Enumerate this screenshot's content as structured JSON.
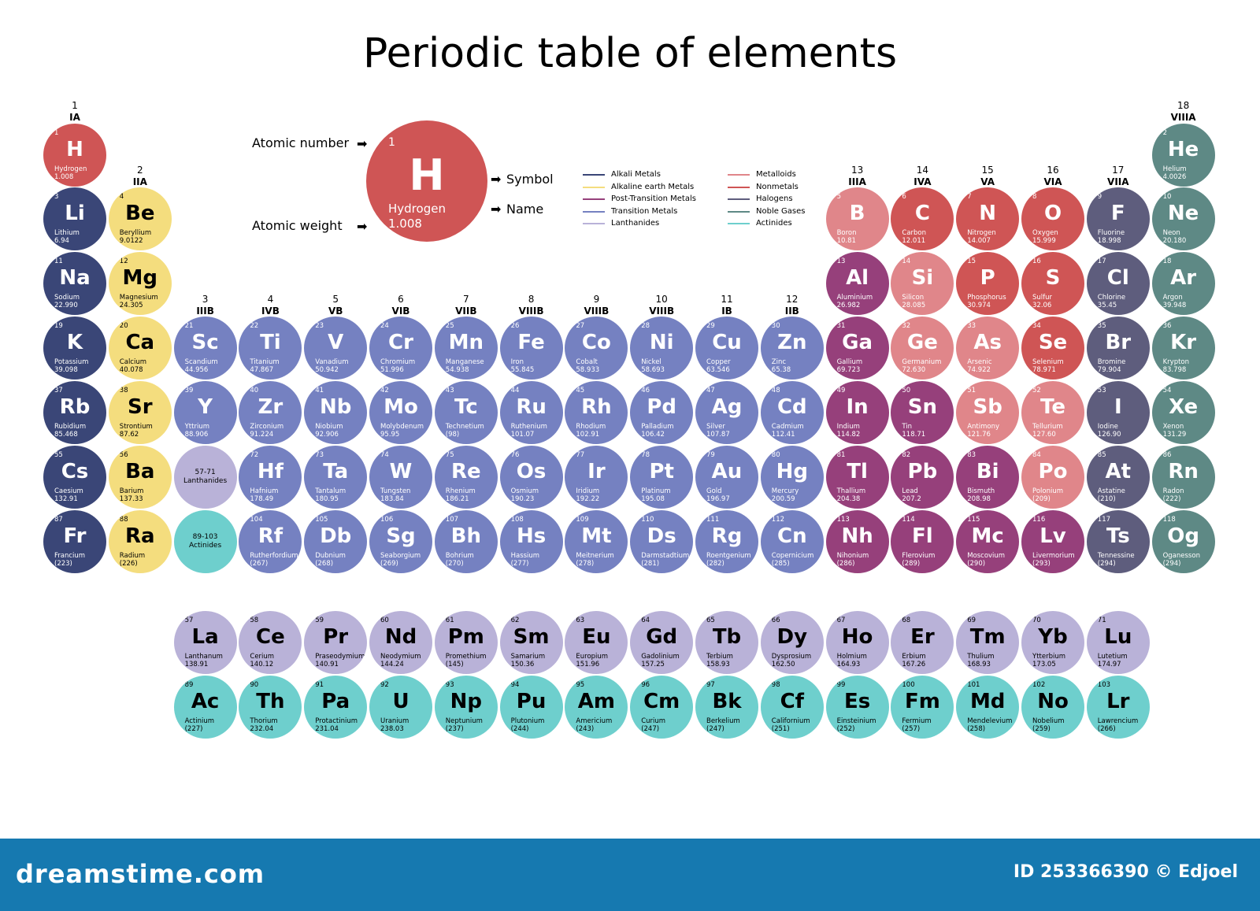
{
  "title": "Periodic table of elements",
  "colors": {
    "alkali": "#3a4677",
    "alkaline": "#f4dd7e",
    "post": "#96407b",
    "transition": "#7581c1",
    "lanthanide": "#b9b2d8",
    "metalloid": "#e0868a",
    "nonmetal": "#cf5555",
    "halogen": "#5e5d7d",
    "noble": "#5e8985",
    "actinide": "#6ecfcd"
  },
  "groups": [
    {
      "n": "1",
      "r": "IA"
    },
    {
      "n": "2",
      "r": "IIA"
    },
    {
      "n": "3",
      "r": "IIIB"
    },
    {
      "n": "4",
      "r": "IVB"
    },
    {
      "n": "5",
      "r": "VB"
    },
    {
      "n": "6",
      "r": "VIB"
    },
    {
      "n": "7",
      "r": "VIIB"
    },
    {
      "n": "8",
      "r": "VIIIB"
    },
    {
      "n": "9",
      "r": "VIIIB"
    },
    {
      "n": "10",
      "r": "VIIIB"
    },
    {
      "n": "11",
      "r": "IB"
    },
    {
      "n": "12",
      "r": "IIB"
    },
    {
      "n": "13",
      "r": "IIIA"
    },
    {
      "n": "14",
      "r": "IVA"
    },
    {
      "n": "15",
      "r": "VA"
    },
    {
      "n": "16",
      "r": "VIA"
    },
    {
      "n": "17",
      "r": "VIIA"
    },
    {
      "n": "18",
      "r": "VIIIA"
    }
  ],
  "legend": {
    "atomic_number_label": "Atomic number",
    "atomic_weight_label": "Atomic weight",
    "symbol_label": "Symbol",
    "name_label": "Name",
    "example_number": "1",
    "example_symbol": "H",
    "example_name": "Hydrogen",
    "example_weight": "1.008"
  },
  "categories": [
    {
      "key": "alkali",
      "label": "Alkali Metals"
    },
    {
      "key": "alkaline",
      "label": "Alkaline earth Metals"
    },
    {
      "key": "post",
      "label": "Post-Transition Metals"
    },
    {
      "key": "transition",
      "label": "Transition Metals"
    },
    {
      "key": "lanthanide",
      "label": "Lanthanides"
    },
    {
      "key": "metalloid",
      "label": "Metalloids"
    },
    {
      "key": "nonmetal",
      "label": "Nonmetals"
    },
    {
      "key": "halogen",
      "label": "Halogens"
    },
    {
      "key": "noble",
      "label": "Noble Gases"
    },
    {
      "key": "actinide",
      "label": "Actinides"
    }
  ],
  "placeholders": [
    {
      "range": "57-71",
      "label": "Lanthanides",
      "cat": "lanthanide",
      "group": 3,
      "period": 6
    },
    {
      "range": "89-103",
      "label": "Actinides",
      "cat": "actinide",
      "group": 3,
      "period": 7
    }
  ],
  "elements": [
    {
      "n": "1",
      "s": "H",
      "name": "Hydrogen",
      "w": "1.008",
      "c": "nonmetal",
      "g": 1,
      "p": 1
    },
    {
      "n": "2",
      "s": "He",
      "name": "Helium",
      "w": "4.0026",
      "c": "noble",
      "g": 18,
      "p": 1
    },
    {
      "n": "3",
      "s": "Li",
      "name": "Lithium",
      "w": "6.94",
      "c": "alkali",
      "g": 1,
      "p": 2
    },
    {
      "n": "4",
      "s": "Be",
      "name": "Beryllium",
      "w": "9.0122",
      "c": "alkaline",
      "g": 2,
      "p": 2
    },
    {
      "n": "5",
      "s": "B",
      "name": "Boron",
      "w": "10.81",
      "c": "metalloid",
      "g": 13,
      "p": 2
    },
    {
      "n": "6",
      "s": "C",
      "name": "Carbon",
      "w": "12.011",
      "c": "nonmetal",
      "g": 14,
      "p": 2
    },
    {
      "n": "7",
      "s": "N",
      "name": "Nitrogen",
      "w": "14.007",
      "c": "nonmetal",
      "g": 15,
      "p": 2
    },
    {
      "n": "8",
      "s": "O",
      "name": "Oxygen",
      "w": "15.999",
      "c": "nonmetal",
      "g": 16,
      "p": 2
    },
    {
      "n": "9",
      "s": "F",
      "name": "Fluorine",
      "w": "18.998",
      "c": "halogen",
      "g": 17,
      "p": 2
    },
    {
      "n": "10",
      "s": "Ne",
      "name": "Neon",
      "w": "20.180",
      "c": "noble",
      "g": 18,
      "p": 2
    },
    {
      "n": "11",
      "s": "Na",
      "name": "Sodium",
      "w": "22.990",
      "c": "alkali",
      "g": 1,
      "p": 3
    },
    {
      "n": "12",
      "s": "Mg",
      "name": "Magnesium",
      "w": "24.305",
      "c": "alkaline",
      "g": 2,
      "p": 3
    },
    {
      "n": "13",
      "s": "Al",
      "name": "Aluminium",
      "w": "26.982",
      "c": "post",
      "g": 13,
      "p": 3
    },
    {
      "n": "14",
      "s": "Si",
      "name": "Silicon",
      "w": "28.085",
      "c": "metalloid",
      "g": 14,
      "p": 3
    },
    {
      "n": "15",
      "s": "P",
      "name": "Phosphorus",
      "w": "30.974",
      "c": "nonmetal",
      "g": 15,
      "p": 3
    },
    {
      "n": "16",
      "s": "S",
      "name": "Sulfur",
      "w": "32.06",
      "c": "nonmetal",
      "g": 16,
      "p": 3
    },
    {
      "n": "17",
      "s": "Cl",
      "name": "Chlorine",
      "w": "35.45",
      "c": "halogen",
      "g": 17,
      "p": 3
    },
    {
      "n": "18",
      "s": "Ar",
      "name": "Argon",
      "w": "39.948",
      "c": "noble",
      "g": 18,
      "p": 3
    },
    {
      "n": "19",
      "s": "K",
      "name": "Potassium",
      "w": "39.098",
      "c": "alkali",
      "g": 1,
      "p": 4
    },
    {
      "n": "20",
      "s": "Ca",
      "name": "Calcium",
      "w": "40.078",
      "c": "alkaline",
      "g": 2,
      "p": 4
    },
    {
      "n": "21",
      "s": "Sc",
      "name": "Scandium",
      "w": "44.956",
      "c": "transition",
      "g": 3,
      "p": 4
    },
    {
      "n": "22",
      "s": "Ti",
      "name": "Titanium",
      "w": "47.867",
      "c": "transition",
      "g": 4,
      "p": 4
    },
    {
      "n": "23",
      "s": "V",
      "name": "Vanadium",
      "w": "50.942",
      "c": "transition",
      "g": 5,
      "p": 4
    },
    {
      "n": "24",
      "s": "Cr",
      "name": "Chromium",
      "w": "51.996",
      "c": "transition",
      "g": 6,
      "p": 4
    },
    {
      "n": "25",
      "s": "Mn",
      "name": "Manganese",
      "w": "54.938",
      "c": "transition",
      "g": 7,
      "p": 4
    },
    {
      "n": "26",
      "s": "Fe",
      "name": "Iron",
      "w": "55.845",
      "c": "transition",
      "g": 8,
      "p": 4
    },
    {
      "n": "27",
      "s": "Co",
      "name": "Cobalt",
      "w": "58.933",
      "c": "transition",
      "g": 9,
      "p": 4
    },
    {
      "n": "28",
      "s": "Ni",
      "name": "Nickel",
      "w": "58.693",
      "c": "transition",
      "g": 10,
      "p": 4
    },
    {
      "n": "29",
      "s": "Cu",
      "name": "Copper",
      "w": "63.546",
      "c": "transition",
      "g": 11,
      "p": 4
    },
    {
      "n": "30",
      "s": "Zn",
      "name": "Zinc",
      "w": "65.38",
      "c": "transition",
      "g": 12,
      "p": 4
    },
    {
      "n": "31",
      "s": "Ga",
      "name": "Gallium",
      "w": "69.723",
      "c": "post",
      "g": 13,
      "p": 4
    },
    {
      "n": "32",
      "s": "Ge",
      "name": "Germanium",
      "w": "72.630",
      "c": "metalloid",
      "g": 14,
      "p": 4
    },
    {
      "n": "33",
      "s": "As",
      "name": "Arsenic",
      "w": "74.922",
      "c": "metalloid",
      "g": 15,
      "p": 4
    },
    {
      "n": "34",
      "s": "Se",
      "name": "Selenium",
      "w": "78.971",
      "c": "nonmetal",
      "g": 16,
      "p": 4
    },
    {
      "n": "35",
      "s": "Br",
      "name": "Bromine",
      "w": "79.904",
      "c": "halogen",
      "g": 17,
      "p": 4
    },
    {
      "n": "36",
      "s": "Kr",
      "name": "Krypton",
      "w": "83.798",
      "c": "noble",
      "g": 18,
      "p": 4
    },
    {
      "n": "37",
      "s": "Rb",
      "name": "Rubidium",
      "w": "85.468",
      "c": "alkali",
      "g": 1,
      "p": 5
    },
    {
      "n": "38",
      "s": "Sr",
      "name": "Strontium",
      "w": "87.62",
      "c": "alkaline",
      "g": 2,
      "p": 5
    },
    {
      "n": "39",
      "s": "Y",
      "name": "Yttrium",
      "w": "88.906",
      "c": "transition",
      "g": 3,
      "p": 5
    },
    {
      "n": "40",
      "s": "Zr",
      "name": "Zirconium",
      "w": "91.224",
      "c": "transition",
      "g": 4,
      "p": 5
    },
    {
      "n": "41",
      "s": "Nb",
      "name": "Niobium",
      "w": "92.906",
      "c": "transition",
      "g": 5,
      "p": 5
    },
    {
      "n": "42",
      "s": "Mo",
      "name": "Molybdenum",
      "w": "95.95",
      "c": "transition",
      "g": 6,
      "p": 5
    },
    {
      "n": "43",
      "s": "Tc",
      "name": "Technetium",
      "w": "(98)",
      "c": "transition",
      "g": 7,
      "p": 5
    },
    {
      "n": "44",
      "s": "Ru",
      "name": "Ruthenium",
      "w": "101.07",
      "c": "transition",
      "g": 8,
      "p": 5
    },
    {
      "n": "45",
      "s": "Rh",
      "name": "Rhodium",
      "w": "102.91",
      "c": "transition",
      "g": 9,
      "p": 5
    },
    {
      "n": "46",
      "s": "Pd",
      "name": "Palladium",
      "w": "106.42",
      "c": "transition",
      "g": 10,
      "p": 5
    },
    {
      "n": "47",
      "s": "Ag",
      "name": "Silver",
      "w": "107.87",
      "c": "transition",
      "g": 11,
      "p": 5
    },
    {
      "n": "48",
      "s": "Cd",
      "name": "Cadmium",
      "w": "112.41",
      "c": "transition",
      "g": 12,
      "p": 5
    },
    {
      "n": "49",
      "s": "In",
      "name": "Indium",
      "w": "114.82",
      "c": "post",
      "g": 13,
      "p": 5
    },
    {
      "n": "50",
      "s": "Sn",
      "name": "Tin",
      "w": "118.71",
      "c": "post",
      "g": 14,
      "p": 5
    },
    {
      "n": "51",
      "s": "Sb",
      "name": "Antimony",
      "w": "121.76",
      "c": "metalloid",
      "g": 15,
      "p": 5
    },
    {
      "n": "52",
      "s": "Te",
      "name": "Tellurium",
      "w": "127.60",
      "c": "metalloid",
      "g": 16,
      "p": 5
    },
    {
      "n": "53",
      "s": "I",
      "name": "Iodine",
      "w": "126.90",
      "c": "halogen",
      "g": 17,
      "p": 5
    },
    {
      "n": "54",
      "s": "Xe",
      "name": "Xenon",
      "w": "131.29",
      "c": "noble",
      "g": 18,
      "p": 5
    },
    {
      "n": "55",
      "s": "Cs",
      "name": "Caesium",
      "w": "132.91",
      "c": "alkali",
      "g": 1,
      "p": 6
    },
    {
      "n": "56",
      "s": "Ba",
      "name": "Barium",
      "w": "137.33",
      "c": "alkaline",
      "g": 2,
      "p": 6
    },
    {
      "n": "72",
      "s": "Hf",
      "name": "Hafnium",
      "w": "178.49",
      "c": "transition",
      "g": 4,
      "p": 6
    },
    {
      "n": "73",
      "s": "Ta",
      "name": "Tantalum",
      "w": "180.95",
      "c": "transition",
      "g": 5,
      "p": 6
    },
    {
      "n": "74",
      "s": "W",
      "name": "Tungsten",
      "w": "183.84",
      "c": "transition",
      "g": 6,
      "p": 6
    },
    {
      "n": "75",
      "s": "Re",
      "name": "Rhenium",
      "w": "186.21",
      "c": "transition",
      "g": 7,
      "p": 6
    },
    {
      "n": "76",
      "s": "Os",
      "name": "Osmium",
      "w": "190.23",
      "c": "transition",
      "g": 8,
      "p": 6
    },
    {
      "n": "77",
      "s": "Ir",
      "name": "Iridium",
      "w": "192.22",
      "c": "transition",
      "g": 9,
      "p": 6
    },
    {
      "n": "78",
      "s": "Pt",
      "name": "Platinum",
      "w": "195.08",
      "c": "transition",
      "g": 10,
      "p": 6
    },
    {
      "n": "79",
      "s": "Au",
      "name": "Gold",
      "w": "196.97",
      "c": "transition",
      "g": 11,
      "p": 6
    },
    {
      "n": "80",
      "s": "Hg",
      "name": "Mercury",
      "w": "200.59",
      "c": "transition",
      "g": 12,
      "p": 6
    },
    {
      "n": "81",
      "s": "Tl",
      "name": "Thallium",
      "w": "204.38",
      "c": "post",
      "g": 13,
      "p": 6
    },
    {
      "n": "82",
      "s": "Pb",
      "name": "Lead",
      "w": "207.2",
      "c": "post",
      "g": 14,
      "p": 6
    },
    {
      "n": "83",
      "s": "Bi",
      "name": "Bismuth",
      "w": "208.98",
      "c": "post",
      "g": 15,
      "p": 6
    },
    {
      "n": "84",
      "s": "Po",
      "name": "Polonium",
      "w": "(209)",
      "c": "metalloid",
      "g": 16,
      "p": 6
    },
    {
      "n": "85",
      "s": "At",
      "name": "Astatine",
      "w": "(210)",
      "c": "halogen",
      "g": 17,
      "p": 6
    },
    {
      "n": "86",
      "s": "Rn",
      "name": "Radon",
      "w": "(222)",
      "c": "noble",
      "g": 18,
      "p": 6
    },
    {
      "n": "87",
      "s": "Fr",
      "name": "Francium",
      "w": "(223)",
      "c": "alkali",
      "g": 1,
      "p": 7
    },
    {
      "n": "88",
      "s": "Ra",
      "name": "Radium",
      "w": "(226)",
      "c": "alkaline",
      "g": 2,
      "p": 7
    },
    {
      "n": "104",
      "s": "Rf",
      "name": "Rutherfordium",
      "w": "(267)",
      "c": "transition",
      "g": 4,
      "p": 7
    },
    {
      "n": "105",
      "s": "Db",
      "name": "Dubnium",
      "w": "(268)",
      "c": "transition",
      "g": 5,
      "p": 7
    },
    {
      "n": "106",
      "s": "Sg",
      "name": "Seaborgium",
      "w": "(269)",
      "c": "transition",
      "g": 6,
      "p": 7
    },
    {
      "n": "107",
      "s": "Bh",
      "name": "Bohrium",
      "w": "(270)",
      "c": "transition",
      "g": 7,
      "p": 7
    },
    {
      "n": "108",
      "s": "Hs",
      "name": "Hassium",
      "w": "(277)",
      "c": "transition",
      "g": 8,
      "p": 7
    },
    {
      "n": "109",
      "s": "Mt",
      "name": "Meitnerium",
      "w": "(278)",
      "c": "transition",
      "g": 9,
      "p": 7
    },
    {
      "n": "110",
      "s": "Ds",
      "name": "Darmstadtium",
      "w": "(281)",
      "c": "transition",
      "g": 10,
      "p": 7
    },
    {
      "n": "111",
      "s": "Rg",
      "name": "Roentgenium",
      "w": "(282)",
      "c": "transition",
      "g": 11,
      "p": 7
    },
    {
      "n": "112",
      "s": "Cn",
      "name": "Copernicium",
      "w": "(285)",
      "c": "transition",
      "g": 12,
      "p": 7
    },
    {
      "n": "113",
      "s": "Nh",
      "name": "Nihonium",
      "w": "(286)",
      "c": "post",
      "g": 13,
      "p": 7
    },
    {
      "n": "114",
      "s": "Fl",
      "name": "Flerovium",
      "w": "(289)",
      "c": "post",
      "g": 14,
      "p": 7
    },
    {
      "n": "115",
      "s": "Mc",
      "name": "Moscovium",
      "w": "(290)",
      "c": "post",
      "g": 15,
      "p": 7
    },
    {
      "n": "116",
      "s": "Lv",
      "name": "Livermorium",
      "w": "(293)",
      "c": "post",
      "g": 16,
      "p": 7
    },
    {
      "n": "117",
      "s": "Ts",
      "name": "Tennessine",
      "w": "(294)",
      "c": "halogen",
      "g": 17,
      "p": 7
    },
    {
      "n": "118",
      "s": "Og",
      "name": "Oganesson",
      "w": "(294)",
      "c": "noble",
      "g": 18,
      "p": 7
    },
    {
      "n": "57",
      "s": "La",
      "name": "Lanthanum",
      "w": "138.91",
      "c": "lanthanide",
      "g": 3,
      "p": 8
    },
    {
      "n": "58",
      "s": "Ce",
      "name": "Cerium",
      "w": "140.12",
      "c": "lanthanide",
      "g": 4,
      "p": 8
    },
    {
      "n": "59",
      "s": "Pr",
      "name": "Praseodymium",
      "w": "140.91",
      "c": "lanthanide",
      "g": 5,
      "p": 8
    },
    {
      "n": "60",
      "s": "Nd",
      "name": "Neodymium",
      "w": "144.24",
      "c": "lanthanide",
      "g": 6,
      "p": 8
    },
    {
      "n": "61",
      "s": "Pm",
      "name": "Promethium",
      "w": "(145)",
      "c": "lanthanide",
      "g": 7,
      "p": 8
    },
    {
      "n": "62",
      "s": "Sm",
      "name": "Samarium",
      "w": "150.36",
      "c": "lanthanide",
      "g": 8,
      "p": 8
    },
    {
      "n": "63",
      "s": "Eu",
      "name": "Europium",
      "w": "151.96",
      "c": "lanthanide",
      "g": 9,
      "p": 8
    },
    {
      "n": "64",
      "s": "Gd",
      "name": "Gadolinium",
      "w": "157.25",
      "c": "lanthanide",
      "g": 10,
      "p": 8
    },
    {
      "n": "65",
      "s": "Tb",
      "name": "Terbium",
      "w": "158.93",
      "c": "lanthanide",
      "g": 11,
      "p": 8
    },
    {
      "n": "66",
      "s": "Dy",
      "name": "Dysprosium",
      "w": "162.50",
      "c": "lanthanide",
      "g": 12,
      "p": 8
    },
    {
      "n": "67",
      "s": "Ho",
      "name": "Holmium",
      "w": "164.93",
      "c": "lanthanide",
      "g": 13,
      "p": 8
    },
    {
      "n": "68",
      "s": "Er",
      "name": "Erbium",
      "w": "167.26",
      "c": "lanthanide",
      "g": 14,
      "p": 8
    },
    {
      "n": "69",
      "s": "Tm",
      "name": "Thulium",
      "w": "168.93",
      "c": "lanthanide",
      "g": 15,
      "p": 8
    },
    {
      "n": "70",
      "s": "Yb",
      "name": "Ytterbium",
      "w": "173.05",
      "c": "lanthanide",
      "g": 16,
      "p": 8
    },
    {
      "n": "71",
      "s": "Lu",
      "name": "Lutetium",
      "w": "174.97",
      "c": "lanthanide",
      "g": 17,
      "p": 8
    },
    {
      "n": "89",
      "s": "Ac",
      "name": "Actinium",
      "w": "(227)",
      "c": "actinide",
      "g": 3,
      "p": 9
    },
    {
      "n": "90",
      "s": "Th",
      "name": "Thorium",
      "w": "232.04",
      "c": "actinide",
      "g": 4,
      "p": 9
    },
    {
      "n": "91",
      "s": "Pa",
      "name": "Protactinium",
      "w": "231.04",
      "c": "actinide",
      "g": 5,
      "p": 9
    },
    {
      "n": "92",
      "s": "U",
      "name": "Uranium",
      "w": "238.03",
      "c": "actinide",
      "g": 6,
      "p": 9
    },
    {
      "n": "93",
      "s": "Np",
      "name": "Neptunium",
      "w": "(237)",
      "c": "actinide",
      "g": 7,
      "p": 9
    },
    {
      "n": "94",
      "s": "Pu",
      "name": "Plutonium",
      "w": "(244)",
      "c": "actinide",
      "g": 8,
      "p": 9
    },
    {
      "n": "95",
      "s": "Am",
      "name": "Americium",
      "w": "(243)",
      "c": "actinide",
      "g": 9,
      "p": 9
    },
    {
      "n": "96",
      "s": "Cm",
      "name": "Curium",
      "w": "(247)",
      "c": "actinide",
      "g": 10,
      "p": 9
    },
    {
      "n": "97",
      "s": "Bk",
      "name": "Berkelium",
      "w": "(247)",
      "c": "actinide",
      "g": 11,
      "p": 9
    },
    {
      "n": "98",
      "s": "Cf",
      "name": "Californium",
      "w": "(251)",
      "c": "actinide",
      "g": 12,
      "p": 9
    },
    {
      "n": "99",
      "s": "Es",
      "name": "Einsteinium",
      "w": "(252)",
      "c": "actinide",
      "g": 13,
      "p": 9
    },
    {
      "n": "100",
      "s": "Fm",
      "name": "Fermium",
      "w": "(257)",
      "c": "actinide",
      "g": 14,
      "p": 9
    },
    {
      "n": "101",
      "s": "Md",
      "name": "Mendelevium",
      "w": "(258)",
      "c": "actinide",
      "g": 15,
      "p": 9
    },
    {
      "n": "102",
      "s": "No",
      "name": "Nobelium",
      "w": "(259)",
      "c": "actinide",
      "g": 16,
      "p": 9
    },
    {
      "n": "103",
      "s": "Lr",
      "name": "Lawrencium",
      "w": "(266)",
      "c": "actinide",
      "g": 17,
      "p": 9
    }
  ],
  "footer": {
    "brand": "dreamstime.com",
    "image_id": "ID 253366390 © Edjoel"
  }
}
